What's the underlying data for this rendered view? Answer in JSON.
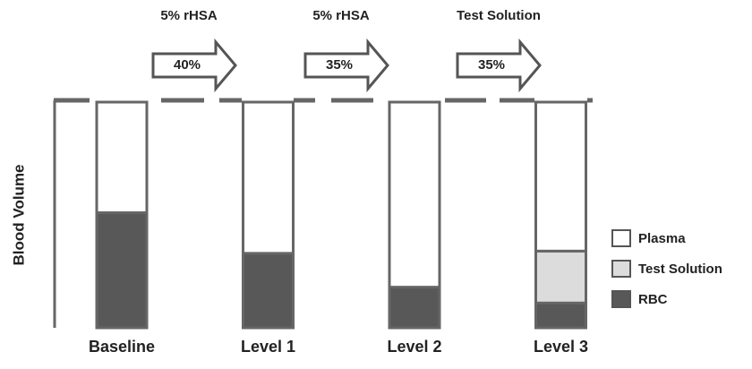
{
  "chart_data": {
    "type": "stacked-bar",
    "y_label": "Blood Volume",
    "categories": [
      "Baseline",
      "Level 1",
      "Level 2",
      "Level 3"
    ],
    "ylim": [
      0,
      100
    ],
    "series": [
      {
        "name": "RBC",
        "color": "#585858",
        "values": [
          51,
          33,
          18,
          11
        ]
      },
      {
        "name": "Test Solution",
        "color": "#dcdcdc",
        "values": [
          null,
          null,
          null,
          23
        ]
      },
      {
        "name": "Plasma",
        "color": "#ffffff",
        "values": [
          49,
          67,
          82,
          66
        ]
      }
    ],
    "steps": [
      {
        "agent": "5% rHSA",
        "amount": "40%"
      },
      {
        "agent": "5% rHSA",
        "amount": "35%"
      },
      {
        "agent": "Test Solution",
        "amount": "35%"
      }
    ]
  }
}
